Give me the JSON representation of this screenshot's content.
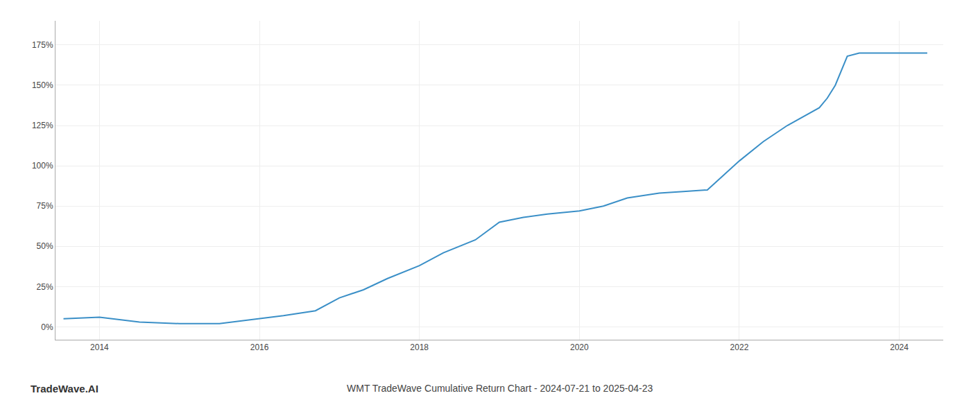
{
  "chart_data": {
    "type": "line",
    "title": "WMT TradeWave Cumulative Return Chart - 2024-07-21 to 2025-04-23",
    "annotations": [
      "TradeWave.AI"
    ],
    "x": [
      2013.55,
      2014.0,
      2014.5,
      2015.0,
      2015.5,
      2016.0,
      2016.3,
      2016.7,
      2017.0,
      2017.3,
      2017.6,
      2018.0,
      2018.3,
      2018.7,
      2019.0,
      2019.3,
      2019.6,
      2020.0,
      2020.3,
      2020.6,
      2021.0,
      2021.3,
      2021.6,
      2022.0,
      2022.3,
      2022.6,
      2023.0,
      2023.1,
      2023.2,
      2023.35,
      2023.5,
      2023.7,
      2024.0,
      2024.35
    ],
    "values": [
      5,
      6,
      3,
      2,
      2,
      5,
      7,
      10,
      18,
      23,
      30,
      38,
      46,
      54,
      65,
      68,
      70,
      72,
      75,
      80,
      83,
      84,
      85,
      103,
      115,
      125,
      136,
      142,
      150,
      168,
      170,
      170,
      170,
      170
    ],
    "color": "#3a8fc7",
    "xlim": [
      2013.45,
      2024.55
    ],
    "ylim": [
      -8,
      190
    ],
    "xticks": [
      2014,
      2016,
      2018,
      2020,
      2022,
      2024
    ],
    "yticks": [
      {
        "value": 0,
        "label": "0%"
      },
      {
        "value": 25,
        "label": "25%"
      },
      {
        "value": 50,
        "label": "50%"
      },
      {
        "value": 75,
        "label": "75%"
      },
      {
        "value": 100,
        "label": "100%"
      },
      {
        "value": 125,
        "label": "125%"
      },
      {
        "value": 150,
        "label": "150%"
      },
      {
        "value": 175,
        "label": "175%"
      }
    ],
    "grid": true
  }
}
